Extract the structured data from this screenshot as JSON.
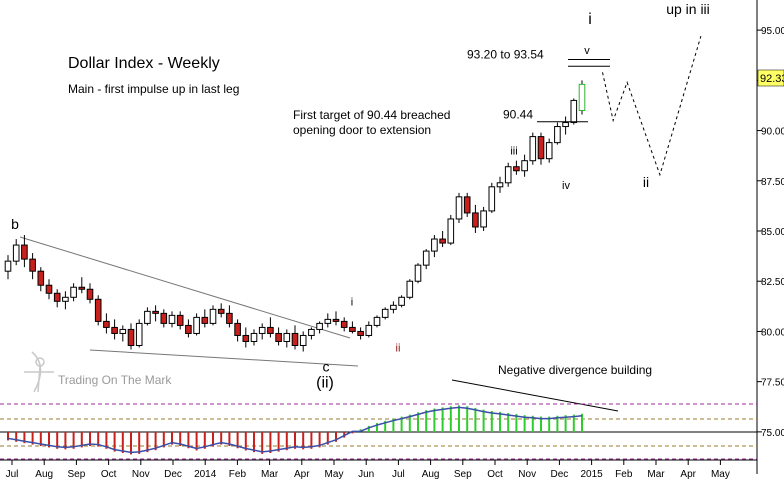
{
  "chart_data": {
    "type": "candlestick",
    "title": "Dollar Index - Weekly",
    "subtitle": "Main - first impulse up in last leg",
    "price_axis": {
      "ylim": [
        73.6,
        96.5
      ],
      "ticks": [
        "95.00",
        "92.50",
        "90.00",
        "87.50",
        "85.00",
        "82.50",
        "80.00",
        "77.50",
        "75.00"
      ],
      "current_label": "92.33",
      "current_value": 92.33
    },
    "time_axis": {
      "x_labels": [
        "Jul",
        "Aug",
        "Sep",
        "Oct",
        "Nov",
        "Dec",
        "2014",
        "Feb",
        "Mar",
        "Apr",
        "May",
        "Jun",
        "Jul",
        "Aug",
        "Sep",
        "Oct",
        "Nov",
        "Dec",
        "2015",
        "Feb",
        "Mar",
        "Apr",
        "May"
      ]
    },
    "candles": [
      [
        83.0,
        83.8,
        82.6,
        83.5
      ],
      [
        83.5,
        84.6,
        83.3,
        84.3
      ],
      [
        84.3,
        84.8,
        83.2,
        83.6
      ],
      [
        83.6,
        83.9,
        82.6,
        83.0
      ],
      [
        83.0,
        83.2,
        82.0,
        82.3
      ],
      [
        82.3,
        82.6,
        81.6,
        81.9
      ],
      [
        81.9,
        82.1,
        81.2,
        81.5
      ],
      [
        81.5,
        82.0,
        81.1,
        81.7
      ],
      [
        81.7,
        82.4,
        81.5,
        82.2
      ],
      [
        82.2,
        82.7,
        81.9,
        82.1
      ],
      [
        82.1,
        82.4,
        81.4,
        81.6
      ],
      [
        81.6,
        81.8,
        80.3,
        80.5
      ],
      [
        80.5,
        80.9,
        79.9,
        80.2
      ],
      [
        80.2,
        80.6,
        79.6,
        79.9
      ],
      [
        79.9,
        80.3,
        79.5,
        80.1
      ],
      [
        80.1,
        80.4,
        79.1,
        79.3
      ],
      [
        79.3,
        80.6,
        79.2,
        80.4
      ],
      [
        80.4,
        81.2,
        80.3,
        81.0
      ],
      [
        81.0,
        81.3,
        80.5,
        80.9
      ],
      [
        80.9,
        81.1,
        80.2,
        80.4
      ],
      [
        80.4,
        81.0,
        80.2,
        80.8
      ],
      [
        80.8,
        81.0,
        80.1,
        80.3
      ],
      [
        80.3,
        80.6,
        79.7,
        79.9
      ],
      [
        79.9,
        80.9,
        79.8,
        80.7
      ],
      [
        80.7,
        81.1,
        80.2,
        80.4
      ],
      [
        80.4,
        81.3,
        80.3,
        81.1
      ],
      [
        81.1,
        81.4,
        80.7,
        80.9
      ],
      [
        80.9,
        81.3,
        80.2,
        80.4
      ],
      [
        80.4,
        80.6,
        79.5,
        79.8
      ],
      [
        79.8,
        80.2,
        79.2,
        79.5
      ],
      [
        79.5,
        80.1,
        79.3,
        79.9
      ],
      [
        79.9,
        80.4,
        79.6,
        80.2
      ],
      [
        80.2,
        80.7,
        79.7,
        79.9
      ],
      [
        79.9,
        80.2,
        79.3,
        79.5
      ],
      [
        79.5,
        80.1,
        79.2,
        79.9
      ],
      [
        79.9,
        80.3,
        79.1,
        79.3
      ],
      [
        79.3,
        80.0,
        79.0,
        79.8
      ],
      [
        79.8,
        80.2,
        79.6,
        80.1
      ],
      [
        80.1,
        80.5,
        79.9,
        80.4
      ],
      [
        80.4,
        80.9,
        80.2,
        80.6
      ],
      [
        80.6,
        81.0,
        80.3,
        80.5
      ],
      [
        80.5,
        80.7,
        80.0,
        80.2
      ],
      [
        80.2,
        80.5,
        79.9,
        80.0
      ],
      [
        80.0,
        80.2,
        79.6,
        79.8
      ],
      [
        79.8,
        80.5,
        79.7,
        80.3
      ],
      [
        80.3,
        80.8,
        80.2,
        80.7
      ],
      [
        80.7,
        81.2,
        80.6,
        81.1
      ],
      [
        81.1,
        81.5,
        80.9,
        81.3
      ],
      [
        81.3,
        81.8,
        81.2,
        81.7
      ],
      [
        81.7,
        82.6,
        81.6,
        82.5
      ],
      [
        82.5,
        83.4,
        82.4,
        83.3
      ],
      [
        83.3,
        84.1,
        83.1,
        84.0
      ],
      [
        84.0,
        84.8,
        83.7,
        84.6
      ],
      [
        84.6,
        85.0,
        84.2,
        84.4
      ],
      [
        84.4,
        85.8,
        84.3,
        85.6
      ],
      [
        85.6,
        86.9,
        85.4,
        86.7
      ],
      [
        86.7,
        86.9,
        85.7,
        85.9
      ],
      [
        85.9,
        86.3,
        84.9,
        85.2
      ],
      [
        85.2,
        86.2,
        85.0,
        86.0
      ],
      [
        86.0,
        87.4,
        85.9,
        87.2
      ],
      [
        87.2,
        87.7,
        86.9,
        87.4
      ],
      [
        87.4,
        88.4,
        87.2,
        88.2
      ],
      [
        88.2,
        88.5,
        87.8,
        88.0
      ],
      [
        88.0,
        88.8,
        87.7,
        88.5
      ],
      [
        88.5,
        89.9,
        88.3,
        89.7
      ],
      [
        89.7,
        89.9,
        88.3,
        88.6
      ],
      [
        88.6,
        89.6,
        88.4,
        89.4
      ],
      [
        89.4,
        90.4,
        89.3,
        90.2
      ],
      [
        90.2,
        90.7,
        89.8,
        90.4
      ],
      [
        90.4,
        91.6,
        90.3,
        91.5
      ],
      [
        91.0,
        92.5,
        90.8,
        92.3
      ]
    ],
    "level_lines": [
      {
        "label": "90.44",
        "value": 90.44
      },
      {
        "label": "93.20 to 93.54",
        "from": 93.2,
        "to": 93.54
      }
    ],
    "wave_labels": [
      {
        "label": "b",
        "value": 85.1
      },
      {
        "label": "c",
        "value": 78.0
      },
      {
        "label": "(ii)",
        "value": 77.2
      },
      {
        "label": "i",
        "value": 81.3
      },
      {
        "label": "ii",
        "value": 79.0
      },
      {
        "label": "iii",
        "value": 88.8
      },
      {
        "label": "iv",
        "value": 87.1
      },
      {
        "label": "v",
        "value": 93.8
      },
      {
        "label": "i",
        "value": 95.3
      },
      {
        "label": "ii",
        "value": 87.2
      },
      {
        "label": "up in iii",
        "value": 95.8
      }
    ],
    "projection": [
      {
        "week": 72.5,
        "value": 92.9
      },
      {
        "week": 73.8,
        "value": 90.5
      },
      {
        "week": 75.5,
        "value": 92.4
      },
      {
        "week": 79.5,
        "value": 87.8
      },
      {
        "week": 84.5,
        "value": 94.7
      }
    ],
    "annotations": [
      "First target of 90.44 breached",
      "opening door to extension",
      "Negative divergence building"
    ],
    "watermark": "Trading On The Mark",
    "oscillator": {
      "ylim": [
        -1,
        1
      ],
      "values": [
        -0.3,
        -0.35,
        -0.4,
        -0.45,
        -0.5,
        -0.55,
        -0.6,
        -0.62,
        -0.6,
        -0.55,
        -0.5,
        -0.52,
        -0.6,
        -0.7,
        -0.75,
        -0.8,
        -0.78,
        -0.72,
        -0.65,
        -0.55,
        -0.45,
        -0.5,
        -0.58,
        -0.66,
        -0.6,
        -0.52,
        -0.45,
        -0.5,
        -0.58,
        -0.66,
        -0.72,
        -0.78,
        -0.75,
        -0.7,
        -0.65,
        -0.6,
        -0.62,
        -0.6,
        -0.55,
        -0.45,
        -0.35,
        -0.2,
        -0.05,
        0.1,
        0.22,
        0.32,
        0.4,
        0.48,
        0.55,
        0.62,
        0.7,
        0.78,
        0.84,
        0.88,
        0.92,
        0.95,
        0.92,
        0.86,
        0.8,
        0.75,
        0.72,
        0.68,
        0.64,
        0.6,
        0.58,
        0.55,
        0.55,
        0.58,
        0.6,
        0.62,
        0.65
      ]
    },
    "colors": {
      "bull_candle": "#ffffff",
      "bear_candle": "#c8201c",
      "last_candle": "#2fb52f",
      "osc_positive": "#2ecc2e",
      "osc_negative": "#c8201c",
      "osc_line": "#3a4fa8"
    }
  }
}
